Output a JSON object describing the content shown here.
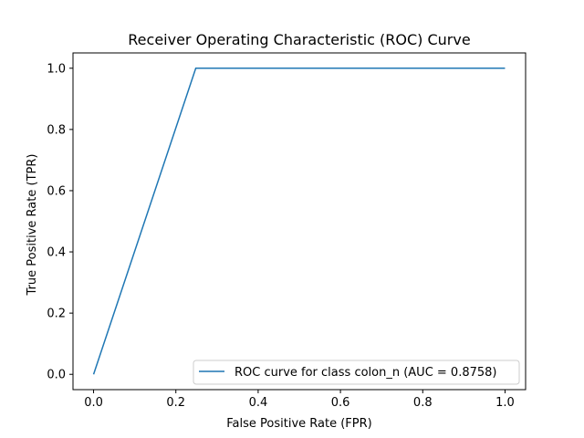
{
  "chart_data": {
    "type": "line",
    "title": "Receiver Operating Characteristic (ROC) Curve",
    "xlabel": "False Positive Rate (FPR)",
    "ylabel": "True Positive Rate (TPR)",
    "xlim": [
      -0.05,
      1.05
    ],
    "ylim": [
      -0.05,
      1.05
    ],
    "xticks": [
      0.0,
      0.2,
      0.4,
      0.6,
      0.8,
      1.0
    ],
    "yticks": [
      0.0,
      0.2,
      0.4,
      0.6,
      0.8,
      1.0
    ],
    "xtick_labels": [
      "0.0",
      "0.2",
      "0.4",
      "0.6",
      "0.8",
      "1.0"
    ],
    "ytick_labels": [
      "0.0",
      "0.2",
      "0.4",
      "0.6",
      "0.8",
      "1.0"
    ],
    "grid": false,
    "legend_position": "bottom-right",
    "series": [
      {
        "name": "ROC curve for class colon_n (AUC = 0.8758)",
        "color": "#1f77b4",
        "x": [
          0.0,
          0.2484,
          1.0
        ],
        "y": [
          0.0,
          1.0,
          1.0
        ]
      }
    ]
  }
}
